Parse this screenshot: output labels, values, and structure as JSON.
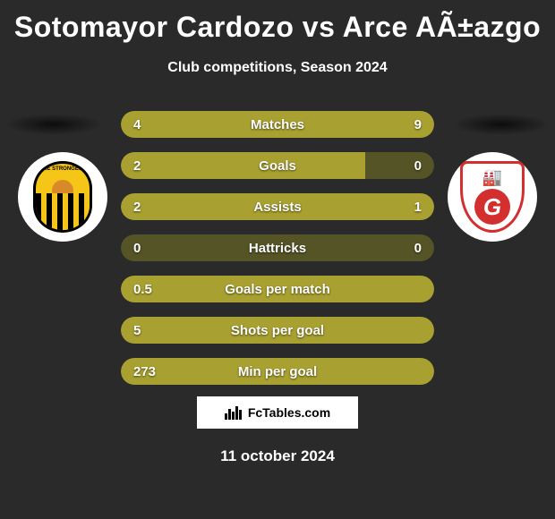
{
  "title": "Sotomayor Cardozo vs Arce AÃ±azgo",
  "subtitle": "Club competitions, Season 2024",
  "date": "11 october 2024",
  "logo_text": "FcTables.com",
  "badge_left_text": "HE STRONGES",
  "colors": {
    "background": "#2a2a2a",
    "bar_fill": "#a8a030",
    "bar_empty": "#545426",
    "text": "#ffffff",
    "badge_left_primary": "#f5c518",
    "badge_left_stripe": "#000000",
    "badge_right_primary": "#d32f2f"
  },
  "stats": [
    {
      "label": "Matches",
      "left_val": "4",
      "right_val": "9",
      "left_pct": 35,
      "right_pct": 65
    },
    {
      "label": "Goals",
      "left_val": "2",
      "right_val": "0",
      "left_pct": 78,
      "right_pct": 0
    },
    {
      "label": "Assists",
      "left_val": "2",
      "right_val": "1",
      "left_pct": 60,
      "right_pct": 40
    },
    {
      "label": "Hattricks",
      "left_val": "0",
      "right_val": "0",
      "left_pct": 0,
      "right_pct": 0
    },
    {
      "label": "Goals per match",
      "left_val": "0.5",
      "right_val": "",
      "left_pct": 100,
      "right_pct": 0,
      "full": true
    },
    {
      "label": "Shots per goal",
      "left_val": "5",
      "right_val": "",
      "left_pct": 100,
      "right_pct": 0,
      "full": true
    },
    {
      "label": "Min per goal",
      "left_val": "273",
      "right_val": "",
      "left_pct": 100,
      "right_pct": 0,
      "full": true
    }
  ]
}
